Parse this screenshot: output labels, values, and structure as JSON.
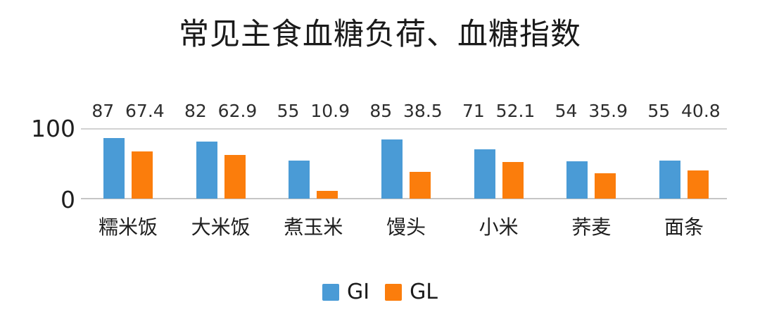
{
  "chart": {
    "title": "常见主食血糖负荷、血糖指数",
    "yticks": {
      "top": "100",
      "bottom": "0"
    },
    "legend": {
      "gi_label": "GI",
      "gl_label": "GL"
    }
  },
  "chart_data": {
    "type": "bar",
    "title": "常见主食血糖负荷、血糖指数",
    "categories": [
      "糯米饭",
      "大米饭",
      "煮玉米",
      "馒头",
      "小米",
      "荞麦",
      "面条"
    ],
    "series": [
      {
        "name": "GI",
        "color": "#4A9BD6",
        "values": [
          87,
          82,
          55,
          85,
          71,
          54,
          55
        ]
      },
      {
        "name": "GL",
        "color": "#FB7D0C",
        "values": [
          67.4,
          62.9,
          10.9,
          38.5,
          52.1,
          35.9,
          40.8
        ]
      }
    ],
    "group_labels": [
      "87  67.4",
      "82  62.9",
      "55  10.9",
      "85  38.5",
      "71  52.1",
      "54  35.9",
      "55  40.8"
    ],
    "ylim": [
      0,
      100
    ],
    "ytick_values": [
      0,
      100
    ],
    "grid": "horizontal gridlines at y=0 and y=100 only",
    "bar_value_labels": "shown above each group as 'GI GL'",
    "legend_position": "bottom-center",
    "colors": {
      "gi": "#4A9BD6",
      "gl": "#FB7D0C",
      "gridline": "#D2D2D2",
      "text": "#1E1E1E"
    }
  }
}
